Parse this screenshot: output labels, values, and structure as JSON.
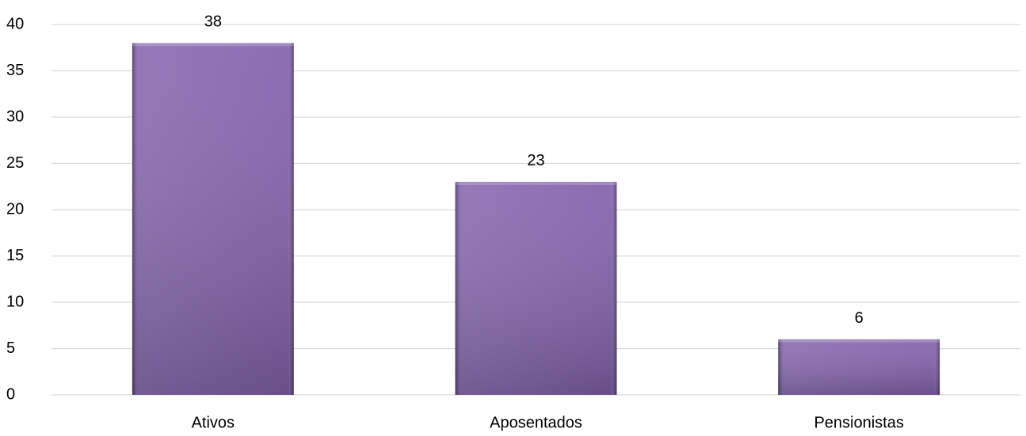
{
  "chart_data": {
    "type": "bar",
    "categories": [
      "Ativos",
      "Aposentados",
      "Pensionistas"
    ],
    "values": [
      38,
      23,
      6
    ],
    "color": "#7b59a8",
    "ylim": [
      0,
      40
    ],
    "yticks": [
      0,
      5,
      10,
      15,
      20,
      25,
      30,
      35,
      40
    ],
    "grid": true
  }
}
